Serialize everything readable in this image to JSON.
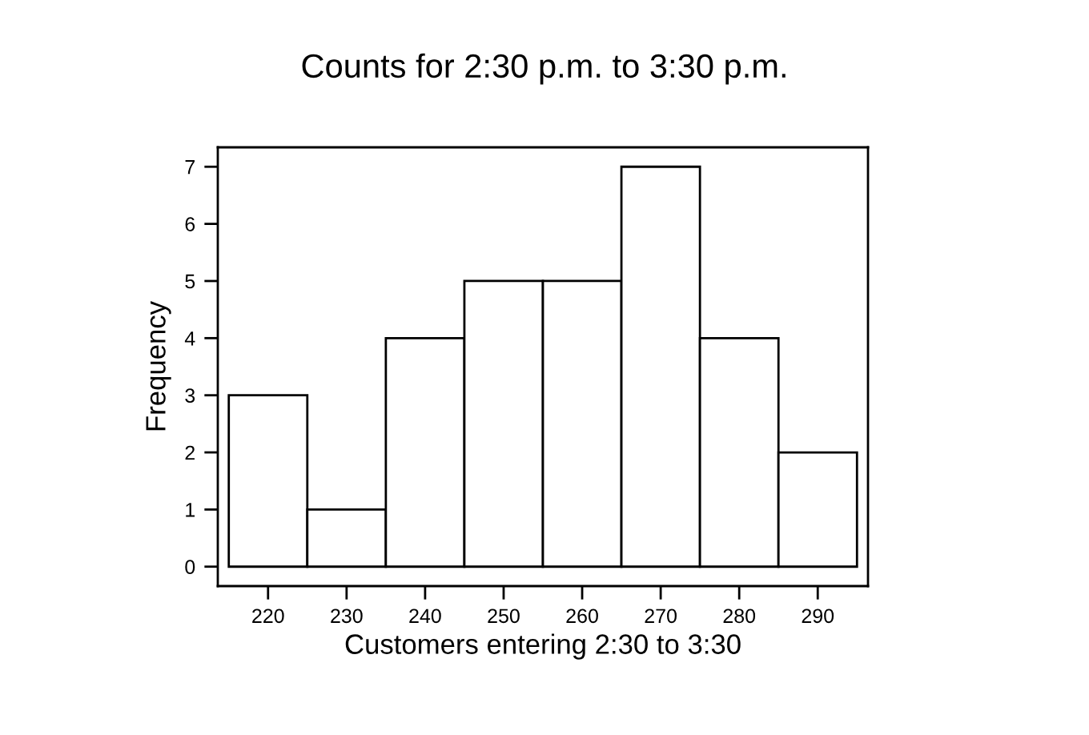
{
  "chart_data": {
    "type": "histogram",
    "title": "Counts for 2:30 p.m. to 3:30 p.m.",
    "xlabel": "Customers entering 2:30 to 3:30",
    "ylabel": "Frequency",
    "bins": [
      215,
      225,
      235,
      245,
      255,
      265,
      275,
      285,
      295
    ],
    "values": [
      3,
      1,
      4,
      5,
      5,
      7,
      4,
      2
    ],
    "color": "#ffffff",
    "xlim": [
      213.6,
      296.4
    ],
    "ylim": [
      -0.34,
      7.34
    ],
    "xticks": [
      220,
      230,
      240,
      250,
      260,
      270,
      280,
      290
    ],
    "yticks": [
      0,
      1,
      2,
      3,
      4,
      5,
      6,
      7
    ]
  }
}
